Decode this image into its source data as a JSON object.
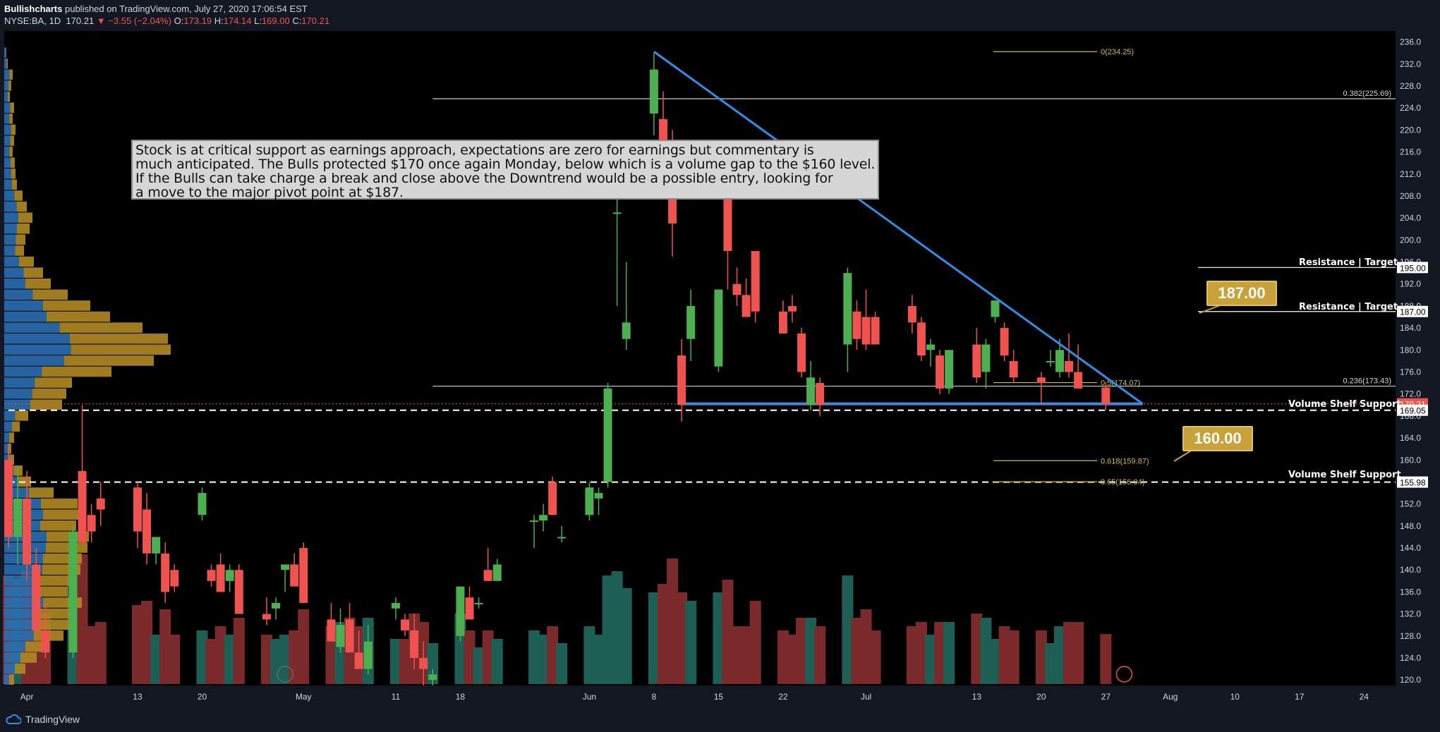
{
  "header": {
    "author": "Bullishcharts",
    "published_text": "published on TradingView.com, July 27, 2020 17:06:54 EST",
    "symbol": "NYSE:BA, 1D",
    "last": "170.21",
    "change": "−3.55 (−2.04%)",
    "o_label": "O:",
    "o": "173.19",
    "h_label": "H:",
    "h": "174.14",
    "l_label": "L:",
    "l": "169.00",
    "c_label": "C:",
    "c": "170.21"
  },
  "footer": {
    "brand": "TradingView"
  },
  "note": {
    "lines": [
      "Stock is at critical support as earnings approach,  expectations are zero for earnings but commentary is",
      "much anticipated.  The Bulls protected $170 once again Monday, below which is a volume gap to the $160 level.",
      "If the Bulls can take charge a break and close above the Downtrend would be a possible entry, looking for",
      "a move to the major pivot  point at $187."
    ]
  },
  "callouts": {
    "c187": "187.00",
    "c160": "160.00"
  },
  "annotations": {
    "res1": "Resistance | Target",
    "res2": "Resistance | Target",
    "vs1": "Volume Shelf Support",
    "vs2": "Volume Shelf Support"
  },
  "colors": {
    "up": "#4caf50",
    "down": "#ef5350",
    "vol_up": "#1e5f55",
    "vol_down": "#7a2a2a",
    "trendline": "#2f8fe8",
    "fib": "#d4b84a",
    "profile_blue": "#2a6fb3",
    "profile_gold": "#b08a22",
    "background": "#000000"
  },
  "chart_data": {
    "type": "candlestick",
    "symbol": "NYSE:BA",
    "interval": "1D",
    "ylim": [
      119,
      238
    ],
    "y_ticks": [
      120,
      124,
      128,
      132,
      136,
      140,
      144,
      148,
      152,
      156,
      160,
      164,
      168,
      172,
      176,
      180,
      184,
      188,
      192,
      196,
      200,
      204,
      208,
      212,
      216,
      220,
      224,
      228,
      232,
      236
    ],
    "x_ticks": [
      {
        "label": "Apr",
        "date": "2020-04-01"
      },
      {
        "label": "13",
        "date": "2020-04-13"
      },
      {
        "label": "20",
        "date": "2020-04-20"
      },
      {
        "label": "May",
        "date": "2020-05-01"
      },
      {
        "label": "11",
        "date": "2020-05-11"
      },
      {
        "label": "18",
        "date": "2020-05-18"
      },
      {
        "label": "Jun",
        "date": "2020-06-01"
      },
      {
        "label": "8",
        "date": "2020-06-08"
      },
      {
        "label": "15",
        "date": "2020-06-15"
      },
      {
        "label": "22",
        "date": "2020-06-22"
      },
      {
        "label": "Jul",
        "date": "2020-07-01"
      },
      {
        "label": "13",
        "date": "2020-07-13"
      },
      {
        "label": "20",
        "date": "2020-07-20"
      },
      {
        "label": "27",
        "date": "2020-07-27"
      },
      {
        "label": "Aug",
        "date": "2020-08-03"
      },
      {
        "label": "10",
        "date": "2020-08-10"
      },
      {
        "label": "17",
        "date": "2020-08-17"
      },
      {
        "label": "24",
        "date": "2020-08-24"
      }
    ],
    "candles": [
      {
        "d": "2020-03-30",
        "o": 160,
        "h": 163,
        "l": 144,
        "c": 146
      },
      {
        "d": "2020-03-31",
        "o": 146,
        "h": 159,
        "l": 141,
        "c": 153
      },
      {
        "d": "2020-04-01",
        "o": 153,
        "h": 158,
        "l": 138,
        "c": 141
      },
      {
        "d": "2020-04-02",
        "o": 141,
        "h": 144,
        "l": 128,
        "c": 129
      },
      {
        "d": "2020-04-03",
        "o": 129,
        "h": 134,
        "l": 124,
        "c": 125
      },
      {
        "d": "2020-04-06",
        "o": 125,
        "h": 148,
        "l": 124,
        "c": 147
      },
      {
        "d": "2020-04-07",
        "o": 158,
        "h": 170,
        "l": 146,
        "c": 145
      },
      {
        "d": "2020-04-08",
        "o": 150,
        "h": 152,
        "l": 145,
        "c": 147
      },
      {
        "d": "2020-04-09",
        "o": 153,
        "h": 156,
        "l": 148,
        "c": 151
      },
      {
        "d": "2020-04-13",
        "o": 155,
        "h": 156,
        "l": 144,
        "c": 147
      },
      {
        "d": "2020-04-14",
        "o": 151,
        "h": 154,
        "l": 141,
        "c": 143
      },
      {
        "d": "2020-04-15",
        "o": 143,
        "h": 146,
        "l": 141,
        "c": 146
      },
      {
        "d": "2020-04-16",
        "o": 143,
        "h": 145,
        "l": 134,
        "c": 136
      },
      {
        "d": "2020-04-17",
        "o": 140,
        "h": 141,
        "l": 136,
        "c": 137
      },
      {
        "d": "2020-04-20",
        "o": 150,
        "h": 155,
        "l": 149,
        "c": 154
      },
      {
        "d": "2020-04-21",
        "o": 140,
        "h": 141,
        "l": 137,
        "c": 138
      },
      {
        "d": "2020-04-22",
        "o": 141,
        "h": 143,
        "l": 136,
        "c": 136
      },
      {
        "d": "2020-04-23",
        "o": 138,
        "h": 141,
        "l": 136,
        "c": 140
      },
      {
        "d": "2020-04-24",
        "o": 140,
        "h": 141,
        "l": 132,
        "c": 132
      },
      {
        "d": "2020-04-27",
        "o": 132,
        "h": 135,
        "l": 130,
        "c": 131
      },
      {
        "d": "2020-04-28",
        "o": 133,
        "h": 135,
        "l": 131,
        "c": 134
      },
      {
        "d": "2020-04-29",
        "o": 140,
        "h": 141,
        "l": 136,
        "c": 141
      },
      {
        "d": "2020-04-30",
        "o": 141,
        "h": 143,
        "l": 137,
        "c": 137
      },
      {
        "d": "2020-05-01",
        "o": 144,
        "h": 145,
        "l": 134,
        "c": 134
      },
      {
        "d": "2020-05-04",
        "o": 131,
        "h": 134,
        "l": 127,
        "c": 127
      },
      {
        "d": "2020-05-05",
        "o": 126,
        "h": 133,
        "l": 125,
        "c": 130
      },
      {
        "d": "2020-05-06",
        "o": 131,
        "h": 134,
        "l": 125,
        "c": 125
      },
      {
        "d": "2020-05-07",
        "o": 125,
        "h": 129,
        "l": 122,
        "c": 122
      },
      {
        "d": "2020-05-08",
        "o": 122,
        "h": 130,
        "l": 121,
        "c": 127
      },
      {
        "d": "2020-05-11",
        "o": 133,
        "h": 135,
        "l": 131,
        "c": 134
      },
      {
        "d": "2020-05-12",
        "o": 131,
        "h": 132,
        "l": 128,
        "c": 129
      },
      {
        "d": "2020-05-13",
        "o": 129,
        "h": 132,
        "l": 122,
        "c": 124
      },
      {
        "d": "2020-05-14",
        "o": 124,
        "h": 127,
        "l": 119,
        "c": 122
      },
      {
        "d": "2020-05-15",
        "o": 120,
        "h": 122,
        "l": 119,
        "c": 121
      },
      {
        "d": "2020-05-18",
        "o": 128,
        "h": 137,
        "l": 127,
        "c": 137
      },
      {
        "d": "2020-05-19",
        "o": 135,
        "h": 137,
        "l": 131,
        "c": 131
      },
      {
        "d": "2020-05-20",
        "o": 134,
        "h": 135,
        "l": 133,
        "c": 134
      },
      {
        "d": "2020-05-21",
        "o": 140,
        "h": 144,
        "l": 138,
        "c": 138
      },
      {
        "d": "2020-05-22",
        "o": 138,
        "h": 142,
        "l": 138,
        "c": 141
      },
      {
        "d": "2020-05-26",
        "o": 149,
        "h": 150,
        "l": 144,
        "c": 149
      },
      {
        "d": "2020-05-27",
        "o": 149,
        "h": 152,
        "l": 147,
        "c": 150
      },
      {
        "d": "2020-05-28",
        "o": 156,
        "h": 157,
        "l": 150,
        "c": 150
      },
      {
        "d": "2020-05-29",
        "o": 146,
        "h": 148,
        "l": 145,
        "c": 146
      },
      {
        "d": "2020-06-01",
        "o": 150,
        "h": 156,
        "l": 149,
        "c": 155
      },
      {
        "d": "2020-06-02",
        "o": 153,
        "h": 155,
        "l": 150,
        "c": 154
      },
      {
        "d": "2020-06-03",
        "o": 156,
        "h": 174,
        "l": 155,
        "c": 173
      },
      {
        "d": "2020-06-04",
        "o": 205,
        "h": 208,
        "l": 188,
        "c": 205
      },
      {
        "d": "2020-06-05",
        "o": 182,
        "h": 196,
        "l": 180,
        "c": 185
      },
      {
        "d": "2020-06-08",
        "o": 223,
        "h": 234,
        "l": 219,
        "c": 231
      },
      {
        "d": "2020-06-09",
        "o": 222,
        "h": 227,
        "l": 210,
        "c": 217
      },
      {
        "d": "2020-06-10",
        "o": 216,
        "h": 220,
        "l": 197,
        "c": 203
      },
      {
        "d": "2020-06-11",
        "o": 179,
        "h": 182,
        "l": 167,
        "c": 170
      },
      {
        "d": "2020-06-12",
        "o": 182,
        "h": 191,
        "l": 178,
        "c": 188
      },
      {
        "d": "2020-06-15",
        "o": 177,
        "h": 191,
        "l": 176,
        "c": 191
      },
      {
        "d": "2020-06-16",
        "o": 208,
        "h": 209,
        "l": 191,
        "c": 198
      },
      {
        "d": "2020-06-17",
        "o": 192,
        "h": 195,
        "l": 188,
        "c": 190
      },
      {
        "d": "2020-06-18",
        "o": 190,
        "h": 193,
        "l": 186,
        "c": 186
      },
      {
        "d": "2020-06-19",
        "o": 198,
        "h": 198,
        "l": 185,
        "c": 187
      },
      {
        "d": "2020-06-22",
        "o": 187,
        "h": 189,
        "l": 183,
        "c": 183
      },
      {
        "d": "2020-06-23",
        "o": 188,
        "h": 190,
        "l": 185,
        "c": 187
      },
      {
        "d": "2020-06-24",
        "o": 183,
        "h": 184,
        "l": 175,
        "c": 176
      },
      {
        "d": "2020-06-25",
        "o": 170,
        "h": 178,
        "l": 169,
        "c": 175
      },
      {
        "d": "2020-06-26",
        "o": 174,
        "h": 175,
        "l": 168,
        "c": 170
      },
      {
        "d": "2020-06-29",
        "o": 181,
        "h": 195,
        "l": 176,
        "c": 194
      },
      {
        "d": "2020-06-30",
        "o": 187,
        "h": 189,
        "l": 180,
        "c": 182
      },
      {
        "d": "2020-07-01",
        "o": 186,
        "h": 191,
        "l": 180,
        "c": 181
      },
      {
        "d": "2020-07-02",
        "o": 186,
        "h": 187,
        "l": 181,
        "c": 181
      },
      {
        "d": "2020-07-06",
        "o": 188,
        "h": 190,
        "l": 183,
        "c": 185
      },
      {
        "d": "2020-07-07",
        "o": 185,
        "h": 186,
        "l": 178,
        "c": 179
      },
      {
        "d": "2020-07-08",
        "o": 180,
        "h": 182,
        "l": 177,
        "c": 181
      },
      {
        "d": "2020-07-09",
        "o": 179,
        "h": 180,
        "l": 172,
        "c": 173
      },
      {
        "d": "2020-07-10",
        "o": 173,
        "h": 180,
        "l": 172,
        "c": 180
      },
      {
        "d": "2020-07-13",
        "o": 181,
        "h": 184,
        "l": 174,
        "c": 175
      },
      {
        "d": "2020-07-14",
        "o": 176,
        "h": 182,
        "l": 173,
        "c": 181
      },
      {
        "d": "2020-07-15",
        "o": 186,
        "h": 189,
        "l": 185,
        "c": 189
      },
      {
        "d": "2020-07-16",
        "o": 184,
        "h": 185,
        "l": 178,
        "c": 179
      },
      {
        "d": "2020-07-17",
        "o": 178,
        "h": 180,
        "l": 174,
        "c": 175
      },
      {
        "d": "2020-07-20",
        "o": 175,
        "h": 176,
        "l": 170,
        "c": 174
      },
      {
        "d": "2020-07-21",
        "o": 178,
        "h": 180,
        "l": 177,
        "c": 178
      },
      {
        "d": "2020-07-22",
        "o": 176,
        "h": 182,
        "l": 175,
        "c": 180
      },
      {
        "d": "2020-07-23",
        "o": 178,
        "h": 183,
        "l": 175,
        "c": 176
      },
      {
        "d": "2020-07-24",
        "o": 176,
        "h": 181,
        "l": 173,
        "c": 173
      },
      {
        "d": "2020-07-27",
        "o": 173.19,
        "h": 174.14,
        "l": 169.0,
        "c": 170.21
      }
    ],
    "volume_profile": {
      "bins": [
        {
          "p": 234,
          "v": 3,
          "up": 0.8
        },
        {
          "p": 232,
          "v": 5,
          "up": 0.7
        },
        {
          "p": 230,
          "v": 12,
          "up": 0.6
        },
        {
          "p": 228,
          "v": 10,
          "up": 0.6
        },
        {
          "p": 226,
          "v": 8,
          "up": 0.6
        },
        {
          "p": 224,
          "v": 14,
          "up": 0.6
        },
        {
          "p": 222,
          "v": 12,
          "up": 0.6
        },
        {
          "p": 220,
          "v": 16,
          "up": 0.6
        },
        {
          "p": 218,
          "v": 14,
          "up": 0.6
        },
        {
          "p": 216,
          "v": 12,
          "up": 0.6
        },
        {
          "p": 214,
          "v": 15,
          "up": 0.6
        },
        {
          "p": 212,
          "v": 16,
          "up": 0.6
        },
        {
          "p": 210,
          "v": 18,
          "up": 0.6
        },
        {
          "p": 208,
          "v": 26,
          "up": 0.55
        },
        {
          "p": 206,
          "v": 32,
          "up": 0.55
        },
        {
          "p": 204,
          "v": 40,
          "up": 0.5
        },
        {
          "p": 202,
          "v": 36,
          "up": 0.5
        },
        {
          "p": 200,
          "v": 30,
          "up": 0.55
        },
        {
          "p": 198,
          "v": 28,
          "up": 0.55
        },
        {
          "p": 196,
          "v": 42,
          "up": 0.5
        },
        {
          "p": 194,
          "v": 55,
          "up": 0.5
        },
        {
          "p": 192,
          "v": 66,
          "up": 0.45
        },
        {
          "p": 190,
          "v": 90,
          "up": 0.45
        },
        {
          "p": 188,
          "v": 122,
          "up": 0.45
        },
        {
          "p": 186,
          "v": 150,
          "up": 0.4
        },
        {
          "p": 184,
          "v": 196,
          "up": 0.4
        },
        {
          "p": 182,
          "v": 232,
          "up": 0.4
        },
        {
          "p": 180,
          "v": 236,
          "up": 0.4
        },
        {
          "p": 178,
          "v": 212,
          "up": 0.4
        },
        {
          "p": 176,
          "v": 152,
          "up": 0.35
        },
        {
          "p": 174,
          "v": 96,
          "up": 0.45
        },
        {
          "p": 172,
          "v": 88,
          "up": 0.45
        },
        {
          "p": 170,
          "v": 82,
          "up": 0.45
        },
        {
          "p": 168,
          "v": 34,
          "up": 0.45
        },
        {
          "p": 166,
          "v": 22,
          "up": 0.5
        },
        {
          "p": 164,
          "v": 14,
          "up": 0.5
        },
        {
          "p": 162,
          "v": 10,
          "up": 0.5
        },
        {
          "p": 160,
          "v": 14,
          "up": 0.5
        },
        {
          "p": 158,
          "v": 26,
          "up": 0.5
        },
        {
          "p": 156,
          "v": 38,
          "up": 0.5
        },
        {
          "p": 154,
          "v": 70,
          "up": 0.5
        },
        {
          "p": 152,
          "v": 104,
          "up": 0.5
        },
        {
          "p": 150,
          "v": 110,
          "up": 0.5
        },
        {
          "p": 148,
          "v": 102,
          "up": 0.5
        },
        {
          "p": 146,
          "v": 120,
          "up": 0.5
        },
        {
          "p": 144,
          "v": 118,
          "up": 0.5
        },
        {
          "p": 142,
          "v": 110,
          "up": 0.5
        },
        {
          "p": 140,
          "v": 108,
          "up": 0.5
        },
        {
          "p": 138,
          "v": 98,
          "up": 0.5
        },
        {
          "p": 136,
          "v": 90,
          "up": 0.5
        },
        {
          "p": 134,
          "v": 110,
          "up": 0.5
        },
        {
          "p": 132,
          "v": 102,
          "up": 0.5
        },
        {
          "p": 130,
          "v": 96,
          "up": 0.5
        },
        {
          "p": 128,
          "v": 84,
          "up": 0.5
        },
        {
          "p": 126,
          "v": 60,
          "up": 0.5
        },
        {
          "p": 124,
          "v": 46,
          "up": 0.5
        },
        {
          "p": 122,
          "v": 30,
          "up": 0.5
        },
        {
          "p": 120,
          "v": 14,
          "up": 0.5
        }
      ]
    },
    "horizontal_levels": [
      {
        "name": "resistance-195",
        "price": 195.0,
        "label": "195.00",
        "style": "solid",
        "color": "#ffffff",
        "from": "2020-08-06"
      },
      {
        "name": "resistance-187",
        "price": 187.0,
        "label": "187.00",
        "style": "solid",
        "color": "#ffffff",
        "from": "2020-08-06"
      },
      {
        "name": "volume-shelf-169",
        "price": 169.05,
        "label": "169.05",
        "style": "dashed",
        "color": "#ffffff",
        "from": "2020-03-30"
      },
      {
        "name": "volume-shelf-156",
        "price": 155.98,
        "label": "155.98",
        "style": "dashed",
        "color": "#ffffff",
        "from": "2020-03-30"
      },
      {
        "name": "range-high",
        "price": 225.69,
        "label": "",
        "style": "solid",
        "color": "#cccccc",
        "from": "2020-05-15"
      },
      {
        "name": "range-mid",
        "price": 173.43,
        "label": "",
        "style": "solid",
        "color": "#cccccc",
        "from": "2020-05-15"
      },
      {
        "name": "support-170",
        "price": 170.21,
        "label": "",
        "style": "solid",
        "color": "#2f8fe8",
        "from": "2020-06-11",
        "to": "2020-07-31"
      }
    ],
    "last_price": {
      "price": 170.21,
      "label": "170.21"
    },
    "fib_levels": [
      {
        "ratio": "0",
        "price": 234.25,
        "label": "0(234.25)"
      },
      {
        "ratio": "0.382",
        "price": 225.69,
        "label": "0.382(225.69)"
      },
      {
        "ratio": "0.236",
        "price": 173.43,
        "label": "0.236(173.43)"
      },
      {
        "ratio": "0.5",
        "price": 174.07,
        "label": "0.5(174.07)"
      },
      {
        "ratio": "0.618",
        "price": 159.87,
        "label": "0.618(159.87)"
      },
      {
        "ratio": "0.65",
        "price": 156.04,
        "label": "0.65(156.04)"
      }
    ],
    "trendline": {
      "from": {
        "d": "2020-06-08",
        "p": 234.25
      },
      "to": {
        "d": "2020-07-31",
        "p": 170.21
      }
    }
  }
}
